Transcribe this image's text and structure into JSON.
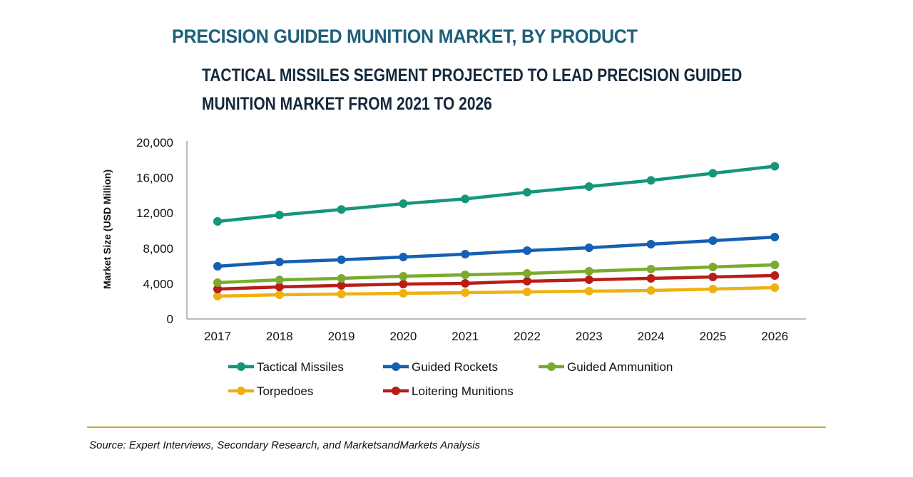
{
  "header": {
    "title": "PRECISION GUIDED MUNITION MARKET, BY PRODUCT",
    "subtitle_line1": "TACTICAL MISSILES SEGMENT PROJECTED TO LEAD PRECISION GUIDED",
    "subtitle_line2": "MUNITION MARKET FROM 2021 TO 2026"
  },
  "footer": {
    "source": "Source: Expert Interviews, Secondary Research, and MarketsandMarkets Analysis",
    "rule_color": "#c9a84a"
  },
  "chart_data": {
    "type": "line",
    "title": "PRECISION GUIDED MUNITION MARKET, BY PRODUCT",
    "subtitle": "TACTICAL MISSILES SEGMENT PROJECTED TO LEAD PRECISION GUIDED MUNITION MARKET FROM 2021 TO 2026",
    "xlabel": "",
    "ylabel": "Market Size (USD Million)",
    "x": [
      "2017",
      "2018",
      "2019",
      "2020",
      "2021",
      "2022",
      "2023",
      "2024",
      "2025",
      "2026"
    ],
    "ylim": [
      0,
      20000
    ],
    "yticks": [
      0,
      4000,
      8000,
      12000,
      16000,
      20000
    ],
    "ytick_labels": [
      "0",
      "4,000",
      "8,000",
      "12,000",
      "16,000",
      "20,000"
    ],
    "grid": false,
    "legend_position": "bottom",
    "series": [
      {
        "name": "Tactical Missiles",
        "color": "#14967a",
        "values": [
          11050,
          11770,
          12400,
          13060,
          13600,
          14350,
          15000,
          15700,
          16500,
          17300
        ]
      },
      {
        "name": "Guided Rockets",
        "color": "#1560b0",
        "values": [
          5970,
          6450,
          6700,
          7020,
          7340,
          7740,
          8060,
          8470,
          8870,
          9270
        ]
      },
      {
        "name": "Guided Ammunition",
        "color": "#7aab2e",
        "values": [
          4110,
          4430,
          4600,
          4840,
          5000,
          5160,
          5400,
          5650,
          5890,
          6130
        ]
      },
      {
        "name": "Torpedoes",
        "color": "#eeb111",
        "values": [
          2580,
          2740,
          2820,
          2900,
          2980,
          3060,
          3150,
          3230,
          3390,
          3550
        ]
      },
      {
        "name": "Loitering Munitions",
        "color": "#b81d18",
        "values": [
          3390,
          3630,
          3800,
          3950,
          4030,
          4270,
          4440,
          4600,
          4760,
          4920
        ]
      }
    ]
  }
}
